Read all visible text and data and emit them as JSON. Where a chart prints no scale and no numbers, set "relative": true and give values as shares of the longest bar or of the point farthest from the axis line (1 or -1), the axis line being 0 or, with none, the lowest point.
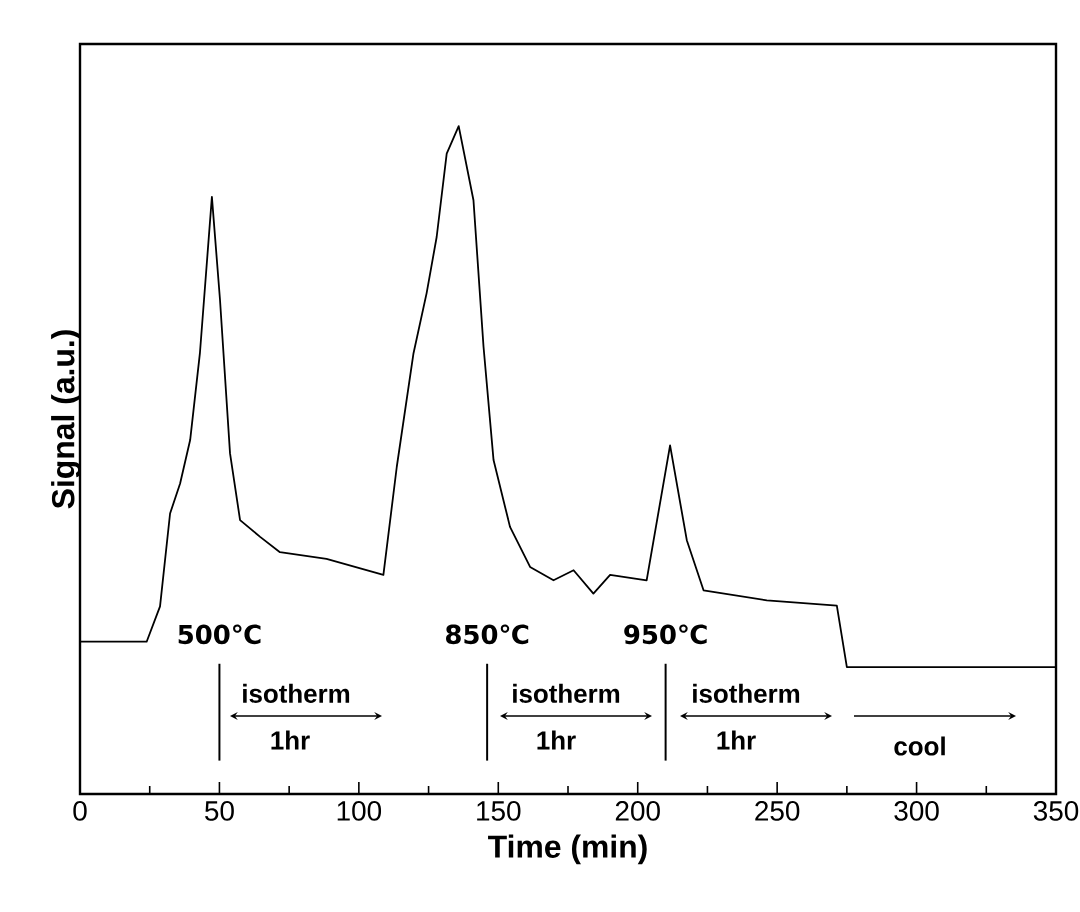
{
  "chart_data": {
    "type": "line",
    "relative": true,
    "xlabel": "Time (min)",
    "ylabel": "Signal (a.u.)",
    "xlim": [
      0,
      350
    ],
    "xticks": [
      0,
      50,
      100,
      150,
      200,
      250,
      300,
      350
    ],
    "series": [
      {
        "color": "#000000",
        "x": [
          0,
          23.9,
          28.7,
          32.3,
          35.9,
          39.5,
          43,
          47.3,
          50.2,
          53.8,
          57.4,
          64.6,
          71.7,
          88.4,
          108.8,
          113.6,
          119.6,
          124.3,
          127.9,
          131.5,
          135.8,
          141.1,
          144.7,
          148.3,
          154.2,
          161.4,
          169.8,
          177,
          184.1,
          190.1,
          203.2,
          211.6,
          217.6,
          223.6,
          246.3,
          271.4,
          275,
          350
        ],
        "values": [
          0.228,
          0.228,
          0.281,
          0.42,
          0.465,
          0.53,
          0.66,
          0.894,
          0.74,
          0.51,
          0.41,
          0.385,
          0.362,
          0.352,
          0.328,
          0.49,
          0.66,
          0.75,
          0.834,
          0.959,
          1.0,
          0.889,
          0.67,
          0.5,
          0.4,
          0.34,
          0.32,
          0.335,
          0.3,
          0.328,
          0.32,
          0.522,
          0.38,
          0.305,
          0.29,
          0.282,
          0.19,
          0.19
        ]
      }
    ],
    "ref_lines": [
      {
        "axis": "x",
        "value": 50,
        "label": "500℃"
      },
      {
        "axis": "x",
        "value": 146,
        "label": "850℃"
      },
      {
        "axis": "x",
        "value": 210,
        "label": "950℃"
      }
    ],
    "annotations": [
      "isotherm",
      "1hr",
      "isotherm",
      "1hr",
      "isotherm",
      "1hr",
      "cool"
    ]
  }
}
